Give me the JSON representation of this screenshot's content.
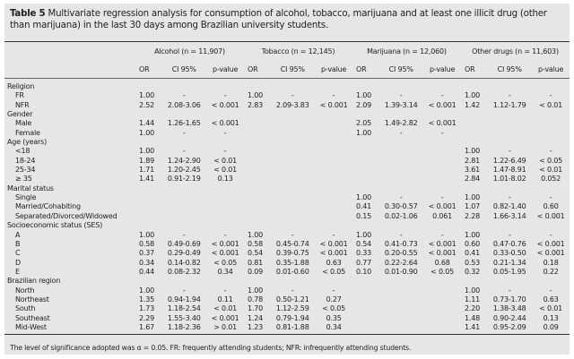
{
  "title_label": "Table 5",
  "title_text": " Multivariate regression analysis for consumption of alcohol, tobacco, marijuana and at least one illicit drug (other than marijuana) in the last 30 days among Brazilian university students.",
  "groups": [
    "Alcohol (n = 11,907)",
    "Tobacco (n = 12,145)",
    "Marijuana (n = 12,060)",
    "Other drugs (n = 11,603)"
  ],
  "subheaders": [
    "OR",
    "CI 95%",
    "p-value"
  ],
  "rows": [
    {
      "label": "Religion",
      "sub": false,
      "cells": []
    },
    {
      "label": "FR",
      "sub": true,
      "cells": [
        "1.00",
        "-",
        "-",
        "1.00",
        "-",
        "-",
        "1.00",
        "-",
        "-",
        "1.00",
        "-",
        "-"
      ]
    },
    {
      "label": "NFR",
      "sub": true,
      "cells": [
        "2.52",
        "2.08-3.06",
        "< 0.001",
        "2.83",
        "2.09-3.83",
        "< 0.001",
        "2.09",
        "1.39-3.14",
        "< 0.001",
        "1.42",
        "1.12-1.79",
        "< 0.01"
      ]
    },
    {
      "label": "Gender",
      "sub": false,
      "cells": []
    },
    {
      "label": "Male",
      "sub": true,
      "cells": [
        "1.44",
        "1.26-1.65",
        "< 0.001",
        "",
        "",
        "",
        "2.05",
        "1.49-2.82",
        "< 0.001",
        "",
        "",
        ""
      ]
    },
    {
      "label": "Female",
      "sub": true,
      "cells": [
        "1.00",
        "-",
        "-",
        "",
        "",
        "",
        "1.00",
        "-",
        "-",
        "",
        "",
        ""
      ]
    },
    {
      "label": "Age (years)",
      "sub": false,
      "cells": []
    },
    {
      "label": "<18",
      "sub": true,
      "cells": [
        "1.00",
        "-",
        "-",
        "",
        "",
        "",
        "",
        "",
        "",
        "1.00",
        "-",
        "-"
      ]
    },
    {
      "label": "18-24",
      "sub": true,
      "cells": [
        "1.89",
        "1.24-2.90",
        "< 0.01",
        "",
        "",
        "",
        "",
        "",
        "",
        "2.81",
        "1.22-6.49",
        "< 0.05"
      ]
    },
    {
      "label": "25-34",
      "sub": true,
      "cells": [
        "1.71",
        "1.20-2.45",
        "< 0.01",
        "",
        "",
        "",
        "",
        "",
        "",
        "3.61",
        "1.47-8.91",
        "< 0.01"
      ]
    },
    {
      "label": "≥ 35",
      "sub": true,
      "cells": [
        "1.41",
        "0.91-2.19",
        "0.13",
        "",
        "",
        "",
        "",
        "",
        "",
        "2.84",
        "1.01-8.02",
        "0.052"
      ]
    },
    {
      "label": "Marital status",
      "sub": false,
      "cells": []
    },
    {
      "label": "Single",
      "sub": true,
      "cells": [
        "",
        "",
        "",
        "",
        "",
        "",
        "1.00",
        "-",
        "-",
        "1.00",
        "-",
        "-"
      ]
    },
    {
      "label": "Married/Cohabiting",
      "sub": true,
      "cells": [
        "",
        "",
        "",
        "",
        "",
        "",
        "0.41",
        "0.30-0.57",
        "< 0.001",
        "1.07",
        "0.82-1.40",
        "0.60"
      ]
    },
    {
      "label": "Separated/Divorced/Widowed",
      "sub": true,
      "cells": [
        "",
        "",
        "",
        "",
        "",
        "",
        "0.15",
        "0.02-1.06",
        "0.061",
        "2.28",
        "1.66-3.14",
        "< 0.001"
      ]
    },
    {
      "label": "Socioeconomic status (SES)",
      "sub": false,
      "cells": []
    },
    {
      "label": "A",
      "sub": true,
      "cells": [
        "1.00",
        "-",
        "-",
        "1.00",
        "-",
        "-",
        "1.00",
        "-",
        "-",
        "1.00",
        "-",
        "-"
      ]
    },
    {
      "label": "B",
      "sub": true,
      "cells": [
        "0.58",
        "0.49-0.69",
        "< 0.001",
        "0.58",
        "0.45-0.74",
        "< 0.001",
        "0.54",
        "0.41-0.73",
        "< 0.001",
        "0.60",
        "0.47-0.76",
        "< 0.001"
      ]
    },
    {
      "label": "C",
      "sub": true,
      "cells": [
        "0.37",
        "0.29-0.49",
        "< 0.001",
        "0.54",
        "0.39-0.75",
        "< 0.001",
        "0.33",
        "0.20-0.55",
        "< 0.001",
        "0.41",
        "0.33-0.50",
        "< 0.001"
      ]
    },
    {
      "label": "D",
      "sub": true,
      "cells": [
        "0.34",
        "0.14-0.82",
        "< 0.05",
        "0.81",
        "0.35-1.88",
        "0.63",
        "0.77",
        "0.22-2.64",
        "0.68",
        "0.53",
        "0.21-1.34",
        "0.18"
      ]
    },
    {
      "label": "E",
      "sub": true,
      "cells": [
        "0.44",
        "0.08-2.32",
        "0.34",
        "0.09",
        "0.01-0.60",
        "< 0.05",
        "0.10",
        "0.01-0.90",
        "< 0.05",
        "0.32",
        "0.05-1.95",
        "0.22"
      ]
    },
    {
      "label": "Brazilian region",
      "sub": false,
      "cells": []
    },
    {
      "label": "North",
      "sub": true,
      "cells": [
        "1.00",
        "-",
        "-",
        "1.00",
        "-",
        "-",
        "",
        "",
        "",
        "1.00",
        "-",
        "-"
      ]
    },
    {
      "label": "Northeast",
      "sub": true,
      "cells": [
        "1.35",
        "0.94-1.94",
        "0.11",
        "0.78",
        "0.50-1.21",
        "0.27",
        "",
        "",
        "",
        "1.11",
        "0.73-1.70",
        "0.63"
      ]
    },
    {
      "label": "South",
      "sub": true,
      "cells": [
        "1.73",
        "1.18-2.54",
        "< 0.01",
        "1.70",
        "1.12-2.59",
        "< 0.05",
        "",
        "",
        "",
        "2.20",
        "1.38-3.48",
        "< 0.01"
      ]
    },
    {
      "label": "Southeast",
      "sub": true,
      "cells": [
        "2.29",
        "1.55-3.40",
        "< 0.001",
        "1.24",
        "0.79-1.94",
        "0.35",
        "",
        "",
        "",
        "1.48",
        "0.90-2.44",
        "0.13"
      ]
    },
    {
      "label": "Mid-West",
      "sub": true,
      "cells": [
        "1.67",
        "1.18-2.36",
        "> 0.01",
        "1.23",
        "0.81-1.88",
        "0.34",
        "",
        "",
        "",
        "1.41",
        "0.95-2.09",
        "0.09"
      ]
    }
  ],
  "footnote": "The level of significance adopted was α = 0.05. FR: frequently attending students; NFR: infrequently attending students."
}
